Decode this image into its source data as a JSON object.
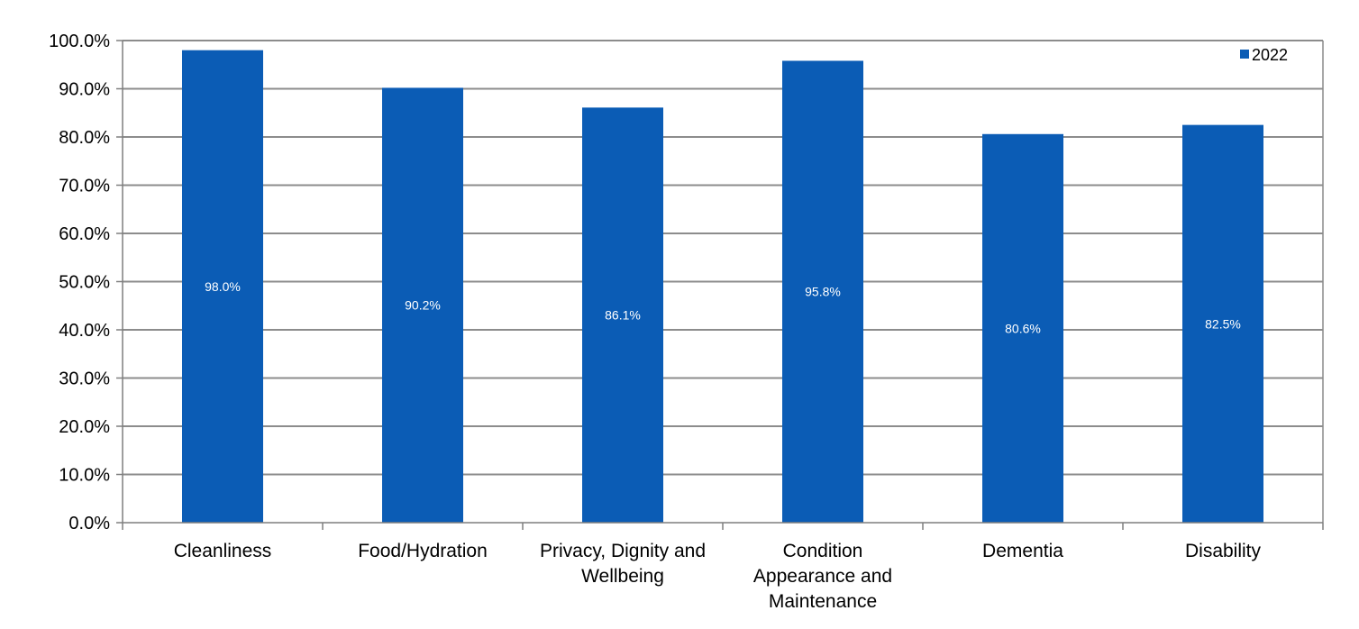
{
  "chart_data": {
    "type": "bar",
    "categories": [
      [
        "Cleanliness"
      ],
      [
        "Food/Hydration"
      ],
      [
        "Privacy, Dignity and",
        "Wellbeing"
      ],
      [
        "Condition",
        "Appearance and",
        "Maintenance"
      ],
      [
        "Dementia"
      ],
      [
        "Disability"
      ]
    ],
    "series": [
      {
        "name": "2022",
        "values": [
          98.0,
          90.2,
          86.1,
          95.8,
          80.6,
          82.5
        ],
        "data_labels": [
          "98.0%",
          "90.2%",
          "86.1%",
          "95.8%",
          "80.6%",
          "82.5%"
        ],
        "color": "#0b5cb5"
      }
    ],
    "ylim": [
      0,
      100
    ],
    "yticks": [
      0,
      10,
      20,
      30,
      40,
      50,
      60,
      70,
      80,
      90,
      100
    ],
    "ytick_labels": [
      "0.0%",
      "10.0%",
      "20.0%",
      "30.0%",
      "40.0%",
      "50.0%",
      "60.0%",
      "70.0%",
      "80.0%",
      "90.0%",
      "100.0%"
    ],
    "grid": true,
    "legend": "top-right",
    "title": "",
    "xlabel": "",
    "ylabel": ""
  },
  "colors": {
    "bar": "#0b5cb5",
    "grid": "#8c8c8c",
    "axis": "#7f7f7f",
    "background": "#ffffff"
  }
}
